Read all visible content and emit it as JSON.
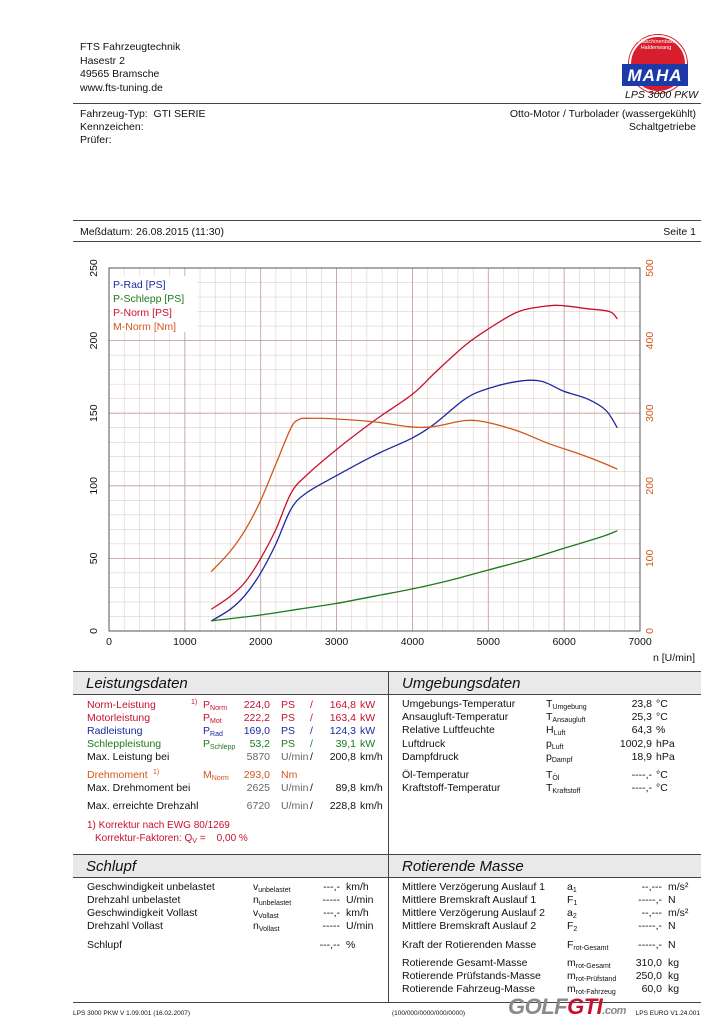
{
  "header": {
    "company_lines": [
      "FTS Fahrzeugtechnik",
      "Hasestr 2",
      "49565 Bramsche",
      "www.fts-tuning.de"
    ],
    "product": "LPS 3000 PKW",
    "logo": {
      "ring_text": "Maschinenbau Haldenwang",
      "brand": "MAHA",
      "colors": {
        "circle": "#d81e2c",
        "bar": "#1c3aa9"
      }
    }
  },
  "vehicle": {
    "type_label": "Fahrzeug-Typ:",
    "type_value": "GTI SERIE",
    "kennzeichen_label": "Kennzeichen:",
    "pruefer_label": "Prüfer:",
    "engine": "Otto-Motor / Turbolader (wassergekühlt)",
    "transmission": "Schaltgetriebe"
  },
  "measure": {
    "date_label": "Meßdatum: 26.08.2015 (11:30)",
    "page": "Seite 1"
  },
  "chart_data": {
    "type": "line",
    "xlabel": "n [U/min]",
    "xlim": [
      0,
      7000
    ],
    "ylim_left": [
      0,
      250
    ],
    "ylim_right": [
      0,
      500
    ],
    "x_ticks": [
      0,
      1000,
      2000,
      3000,
      4000,
      5000,
      6000,
      7000
    ],
    "y_ticks_left": [
      0,
      50,
      100,
      150,
      200,
      250
    ],
    "y_ticks_right": [
      0,
      100,
      200,
      300,
      400,
      500
    ],
    "grid": true,
    "legend_position": "top-left",
    "series": [
      {
        "name": "P-Rad [PS]",
        "axis": "left",
        "color": "#1a2aa0",
        "x": [
          1350,
          1600,
          1800,
          2000,
          2200,
          2400,
          2600,
          3000,
          3500,
          4000,
          4300,
          4700,
          5000,
          5400,
          5700,
          6000,
          6300,
          6550,
          6700
        ],
        "y": [
          7,
          15,
          25,
          40,
          60,
          84,
          95,
          107,
          121,
          133,
          143,
          160,
          167,
          172,
          172,
          165,
          160,
          152,
          140
        ]
      },
      {
        "name": "P-Schlepp [PS]",
        "axis": "left",
        "color": "#1b7a1b",
        "x": [
          1350,
          2000,
          2500,
          3000,
          3500,
          4000,
          4500,
          5000,
          5500,
          6000,
          6500,
          6700
        ],
        "y": [
          7,
          11,
          15,
          19,
          24,
          29,
          35,
          42,
          49,
          57,
          65,
          69
        ]
      },
      {
        "name": "P-Norm [PS]",
        "axis": "left",
        "color": "#c8102e",
        "x": [
          1350,
          1600,
          1800,
          2000,
          2200,
          2400,
          2600,
          3000,
          3500,
          4000,
          4300,
          4700,
          5000,
          5400,
          5800,
          6000,
          6300,
          6600,
          6700
        ],
        "y": [
          15,
          24,
          34,
          50,
          70,
          95,
          107,
          125,
          145,
          163,
          178,
          197,
          208,
          220,
          224,
          224,
          222,
          220,
          215
        ]
      },
      {
        "name": "M-Norm [Nm]",
        "axis": "right",
        "color": "#d2561b",
        "x": [
          1350,
          1600,
          1800,
          2000,
          2200,
          2400,
          2500,
          2600,
          3000,
          3500,
          4000,
          4300,
          4700,
          5000,
          5400,
          5800,
          6200,
          6500,
          6700
        ],
        "y": [
          82,
          110,
          140,
          180,
          230,
          280,
          291,
          293,
          292,
          288,
          281,
          282,
          290,
          287,
          275,
          258,
          244,
          232,
          223
        ]
      }
    ]
  },
  "leistung": {
    "title": "Leistungsdaten",
    "rows": [
      {
        "label": "Norm-Leistung",
        "mark": "1)",
        "sym": "P",
        "sub": "Norm",
        "v1": "224,0",
        "u1": "PS",
        "sep": "/",
        "v2": "164,8",
        "u2": "kW"
      },
      {
        "label": "Motorleistung",
        "mark": "",
        "sym": "P",
        "sub": "Mot",
        "v1": "222,2",
        "u1": "PS",
        "sep": "/",
        "v2": "163,4",
        "u2": "kW"
      },
      {
        "label": "Radleistung",
        "mark": "",
        "sym": "P",
        "sub": "Rad",
        "v1": "169,0",
        "u1": "PS",
        "sep": "/",
        "v2": "124,3",
        "u2": "kW"
      },
      {
        "label": "Schleppleistung",
        "mark": "",
        "sym": "P",
        "sub": "Schlepp",
        "v1": "53,2",
        "u1": "PS",
        "sep": "/",
        "v2": "39,1",
        "u2": "kW"
      }
    ],
    "max_leistung": {
      "label": "Max. Leistung bei",
      "v1": "5870",
      "u1": "U/min",
      "sep": "/",
      "v2": "200,8",
      "u2": "km/h"
    },
    "drehmoment": {
      "label": "Drehmoment",
      "mark": "1)",
      "sym": "M",
      "sub": "Norm",
      "v1": "293,0",
      "u1": "Nm"
    },
    "max_drehmoment": {
      "label": "Max. Drehmoment bei",
      "v1": "2625",
      "u1": "U/min",
      "sep": "/",
      "v2": "89,8",
      "u2": "km/h"
    },
    "max_drehzahl": {
      "label": "Max. erreichte Drehzahl",
      "v1": "6720",
      "u1": "U/min",
      "sep": "/",
      "v2": "228,8",
      "u2": "km/h"
    },
    "footnote1": "1) Korrektur nach EWG 80/1269",
    "footnote2": "Korrektur-Faktoren: Q",
    "footnote2_sub": "V",
    "footnote2_val": " =    0,00 %"
  },
  "umgebung": {
    "title": "Umgebungsdaten",
    "rows": [
      {
        "label": "Umgebungs-Temperatur",
        "sym": "T",
        "sub": "Umgebung",
        "v": "23,8",
        "u": "°C"
      },
      {
        "label": "Ansaugluft-Temperatur",
        "sym": "T",
        "sub": "Ansaugluft",
        "v": "25,3",
        "u": "°C"
      },
      {
        "label": "Relative Luftfeuchte",
        "sym": "H",
        "sub": "Luft",
        "v": "64,3",
        "u": "%"
      },
      {
        "label": "Luftdruck",
        "sym": "p",
        "sub": "Luft",
        "v": "1002,9",
        "u": "hPa"
      },
      {
        "label": "Dampfdruck",
        "sym": "p",
        "sub": "Dampf",
        "v": "18,9",
        "u": "hPa"
      },
      {
        "label": "Öl-Temperatur",
        "sym": "T",
        "sub": "Öl",
        "v": "----,-",
        "u": "°C"
      },
      {
        "label": "Kraftstoff-Temperatur",
        "sym": "T",
        "sub": "Kraftstoff",
        "v": "----,-",
        "u": "°C"
      }
    ]
  },
  "schlupf": {
    "title": "Schlupf",
    "rows": [
      {
        "label": "Geschwindigkeit unbelastet",
        "sym": "v",
        "sub": "unbelastet",
        "v": "---,-",
        "u": "km/h"
      },
      {
        "label": "Drehzahl unbelastet",
        "sym": "n",
        "sub": "unbelastet",
        "v": "-----",
        "u": "U/min"
      },
      {
        "label": "Geschwindigkeit Vollast",
        "sym": "v",
        "sub": "Vollast",
        "v": "---,-",
        "u": "km/h"
      },
      {
        "label": "Drehzahl Vollast",
        "sym": "n",
        "sub": "Vollast",
        "v": "-----",
        "u": "U/min"
      },
      {
        "label": "Schlupf",
        "sym": "",
        "sub": "",
        "v": "---,--",
        "u": "%"
      }
    ]
  },
  "rotierend": {
    "title": "Rotierende Masse",
    "rows": [
      {
        "label": "Mittlere Verzögerung Auslauf 1",
        "sym": "a",
        "sub": "1",
        "v": "--,---",
        "u": "m/s²"
      },
      {
        "label": "Mittlere Bremskraft Auslauf 1",
        "sym": "F",
        "sub": "1",
        "v": "-----,-",
        "u": "N"
      },
      {
        "label": "Mittlere Verzögerung Auslauf 2",
        "sym": "a",
        "sub": "2",
        "v": "--,---",
        "u": "m/s²"
      },
      {
        "label": "Mittlere Bremskraft Auslauf 2",
        "sym": "F",
        "sub": "2",
        "v": "-----,-",
        "u": "N"
      },
      {
        "label": "Kraft der Rotierenden Masse",
        "sym": "F",
        "sub": "rot-Gesamt",
        "v": "-----,-",
        "u": "N"
      },
      {
        "label": "Rotierende Gesamt-Masse",
        "sym": "m",
        "sub": "rot-Gesamt",
        "v": "310,0",
        "u": "kg"
      },
      {
        "label": "Rotierende Prüfstands-Masse",
        "sym": "m",
        "sub": "rot-Prüfstand",
        "v": "250,0",
        "u": "kg"
      },
      {
        "label": "Rotierende Fahrzeug-Masse",
        "sym": "m",
        "sub": "rot-Fahrzeug",
        "v": "60,0",
        "u": "kg"
      }
    ]
  },
  "footer": {
    "left": "LPS 3000 PKW V 1.09.001 (16.02.2007)",
    "mid": "(100/000/0000/000/0000)",
    "right": "LPS EURO V1.24.001"
  },
  "watermark": {
    "a": "GOLF",
    "b": "GTI",
    "c": ".com"
  }
}
